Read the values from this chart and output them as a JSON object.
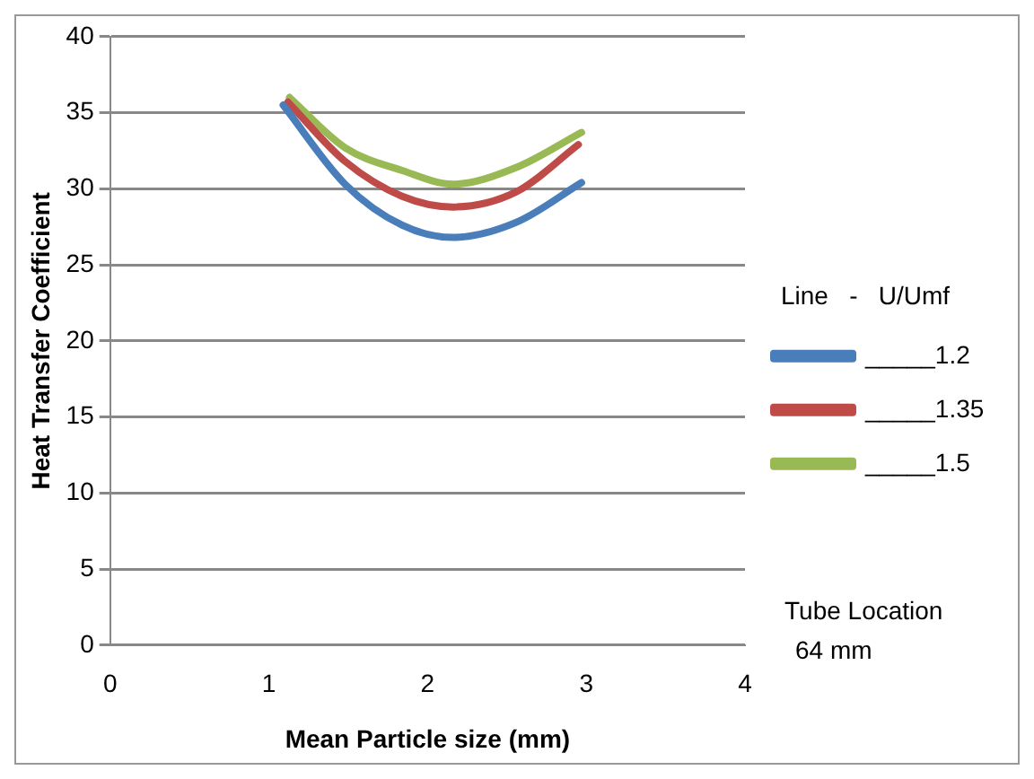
{
  "chart_data": {
    "type": "line",
    "xlabel": "Mean Particle size (mm)",
    "ylabel": "Heat Transfer Coefficient",
    "legend_title": "Line   -   U/Umf",
    "legend": "right",
    "grid": "y",
    "marker": "none",
    "line_style": "solid",
    "xlim": [
      0,
      4
    ],
    "xticks": [
      0,
      1,
      2,
      3,
      4
    ],
    "ylim": [
      0,
      40
    ],
    "yticks": [
      0,
      5,
      10,
      15,
      20,
      25,
      30,
      35,
      40
    ],
    "annotations": [
      "Tube Location\n64 mm"
    ],
    "series": [
      {
        "name": "_____1.2",
        "color": "#4a7ebb",
        "x": [
          1.09,
          1.48,
          1.84,
          2.16,
          2.56,
          2.97
        ],
        "values": [
          35.5,
          30.3,
          27.6,
          26.8,
          27.8,
          30.4
        ]
      },
      {
        "name": "_____1.35",
        "color": "#be4b48",
        "x": [
          1.12,
          1.48,
          1.84,
          2.16,
          2.56,
          2.95
        ],
        "values": [
          35.7,
          31.8,
          29.5,
          28.8,
          29.8,
          32.9
        ]
      },
      {
        "name": "_____1.5",
        "color": "#98b954",
        "x": [
          1.13,
          1.48,
          1.84,
          2.16,
          2.56,
          2.97
        ],
        "values": [
          36.0,
          32.7,
          31.2,
          30.3,
          31.4,
          33.7
        ]
      }
    ]
  }
}
